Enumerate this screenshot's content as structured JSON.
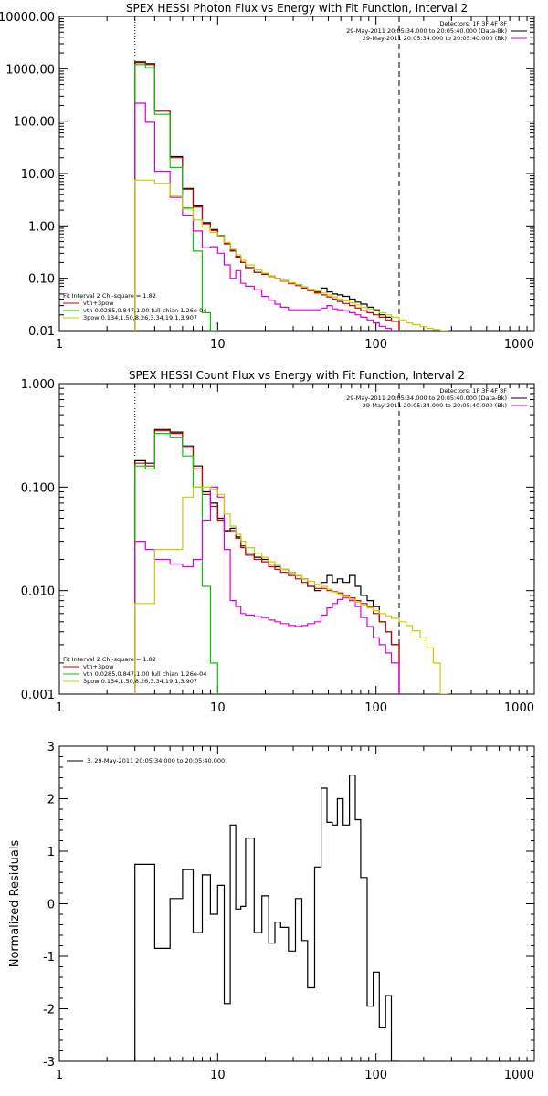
{
  "chart_data": [
    {
      "type": "line",
      "title": "SPEX HESSI Photon Flux vs Energy with Fit Function, Interval 2",
      "xlim": [
        1,
        1000
      ],
      "ylim": [
        0.01,
        10000
      ],
      "xscale": "log",
      "yscale": "log",
      "xticks": [
        "1",
        "10",
        "100",
        "1000"
      ],
      "yticks": [
        "0.01",
        "0.10",
        "1.00",
        "10.00",
        "100.00",
        "1000.00",
        "10000.00"
      ],
      "ytick_values": [
        0.01,
        0.1,
        1,
        10,
        100,
        1000,
        10000
      ],
      "vlines": [
        {
          "x": 3,
          "style": "dotted"
        },
        {
          "x": 140,
          "style": "dashed"
        }
      ],
      "legend_top_right": [
        "Detectors: 1F 3F 4F 8F",
        "29-May-2011 20:05:34.000 to 20:05:40.000 (Data-Bk)",
        "29-May-2011 20:05:34.000 to 20:05:40.000 (Bk)"
      ],
      "legend_top_colors": [
        "#000000",
        "#000000",
        "#dd00dd"
      ],
      "legend_bottom_left": {
        "header": "Fit Interval 2   Chi-square = 1.82",
        "entries": [
          {
            "label": "vth+3pow",
            "color": "#cc0000"
          },
          {
            "label": "vth 0.0285,0.847,1.00  full chian 1.26e-04",
            "color": "#00cc00"
          },
          {
            "label": "3pow 0.134,1.50,8.26,3.34,19.1,3.907",
            "color": "#cccc00"
          }
        ]
      },
      "series": [
        {
          "color": "#000000",
          "edges": [
            3,
            3.5,
            4,
            5,
            6,
            7,
            8,
            9,
            10,
            11,
            12,
            13,
            14,
            15,
            17,
            19,
            21,
            23,
            25,
            28,
            31,
            34,
            37,
            41,
            45,
            49,
            53,
            57,
            62,
            68,
            74,
            80,
            88,
            96,
            105,
            115,
            125,
            140
          ],
          "values": [
            1350,
            1250,
            160,
            21,
            5.2,
            2.4,
            1.15,
            0.85,
            0.65,
            0.46,
            0.34,
            0.26,
            0.2,
            0.16,
            0.13,
            0.12,
            0.11,
            0.1,
            0.09,
            0.08,
            0.075,
            0.068,
            0.06,
            0.055,
            0.065,
            0.055,
            0.05,
            0.048,
            0.045,
            0.04,
            0.035,
            0.032,
            0.028,
            0.025,
            0.02,
            0.018,
            0.015
          ]
        },
        {
          "color": "#cc0000",
          "edges": [
            3,
            3.5,
            4,
            5,
            6,
            7,
            8,
            9,
            10,
            11,
            12,
            13,
            14,
            15,
            17,
            19,
            21,
            23,
            25,
            28,
            31,
            34,
            37,
            41,
            45,
            49,
            53,
            57,
            62,
            68,
            74,
            80,
            88,
            96,
            105,
            115,
            125,
            140
          ],
          "values": [
            1300,
            1200,
            155,
            20,
            5,
            2.3,
            1.1,
            0.82,
            0.63,
            0.45,
            0.33,
            0.25,
            0.2,
            0.16,
            0.13,
            0.118,
            0.108,
            0.098,
            0.088,
            0.079,
            0.072,
            0.065,
            0.058,
            0.052,
            0.048,
            0.044,
            0.04,
            0.036,
            0.033,
            0.03,
            0.027,
            0.024,
            0.022,
            0.02,
            0.018,
            0.016,
            0.015
          ]
        },
        {
          "color": "#00cc00",
          "edges": [
            3,
            3.5,
            4,
            5,
            6,
            7,
            8,
            9,
            10
          ],
          "values": [
            1200,
            1050,
            135,
            13,
            2.2,
            0.33,
            0.022,
            0.007
          ]
        },
        {
          "color": "#dd00dd",
          "edges": [
            3,
            3.5,
            4,
            5,
            6,
            7,
            8,
            9,
            10,
            11,
            12,
            13,
            14,
            15,
            17,
            19,
            21,
            23,
            25,
            28,
            31,
            34,
            37,
            41,
            45,
            49,
            53,
            57,
            62,
            68,
            74,
            80,
            88,
            96,
            105,
            115,
            125,
            140
          ],
          "values": [
            220,
            95,
            11,
            3.5,
            1.6,
            0.8,
            0.38,
            0.4,
            0.3,
            0.18,
            0.1,
            0.14,
            0.08,
            0.07,
            0.06,
            0.045,
            0.038,
            0.032,
            0.028,
            0.025,
            0.025,
            0.025,
            0.025,
            0.025,
            0.027,
            0.03,
            0.026,
            0.025,
            0.024,
            0.022,
            0.02,
            0.018,
            0.016,
            0.014,
            0.012,
            0.011,
            0.01
          ]
        },
        {
          "color": "#cccc00",
          "edges": [
            3,
            4,
            5,
            6,
            7,
            8,
            9,
            10,
            11,
            12,
            13,
            14,
            15,
            17,
            19,
            21,
            23,
            25,
            28,
            31,
            34,
            37,
            41,
            45,
            49,
            53,
            57,
            62,
            68,
            74,
            80,
            88,
            96,
            105,
            115,
            125,
            140,
            155,
            170,
            190,
            210,
            230,
            255,
            280
          ],
          "values": [
            7.5,
            6.5,
            3.8,
            2.1,
            1.3,
            0.95,
            0.75,
            0.63,
            0.48,
            0.36,
            0.28,
            0.22,
            0.18,
            0.145,
            0.125,
            0.11,
            0.1,
            0.09,
            0.082,
            0.075,
            0.068,
            0.062,
            0.057,
            0.052,
            0.048,
            0.044,
            0.04,
            0.037,
            0.034,
            0.031,
            0.028,
            0.026,
            0.024,
            0.022,
            0.02,
            0.018,
            0.016,
            0.014,
            0.013,
            0.012,
            0.011,
            0.0105,
            0.01
          ]
        }
      ]
    },
    {
      "type": "line",
      "title": "SPEX HESSI Count Flux vs Energy with Fit Function, Interval 2",
      "xlim": [
        1,
        1000
      ],
      "ylim": [
        0.001,
        1
      ],
      "xscale": "log",
      "yscale": "log",
      "xticks": [
        "1",
        "10",
        "100",
        "1000"
      ],
      "yticks": [
        "0.001",
        "0.010",
        "0.100",
        "1.000"
      ],
      "ytick_values": [
        0.001,
        0.01,
        0.1,
        1
      ],
      "vlines": [
        {
          "x": 3,
          "style": "dotted"
        },
        {
          "x": 140,
          "style": "dashed"
        }
      ],
      "legend_top_right": [
        "Detectors: 1F 3F 4F 8F",
        "29-May-2011 20:05:34.000 to 20:05:40.000 (Data-Bk)",
        "29-May-2011 20:05:34.000 to 20:05:40.000 (Bk)"
      ],
      "legend_top_colors": [
        "#000000",
        "#000000",
        "#dd00dd"
      ],
      "legend_bottom_left": {
        "header": "Fit Interval 2   Chi-square = 1.82",
        "entries": [
          {
            "label": "vth+3pow",
            "color": "#cc0000"
          },
          {
            "label": "vth 0.0285,0.847,1.00  full chian 1.26e-04",
            "color": "#00cc00"
          },
          {
            "label": "3pow 0.134,1.50,8.26,3.34,19.1,3.907",
            "color": "#cccc00"
          }
        ]
      },
      "series": [
        {
          "color": "#000000",
          "edges": [
            3,
            3.5,
            4,
            5,
            6,
            7,
            8,
            9,
            10,
            11,
            12,
            13,
            14,
            15,
            17,
            19,
            21,
            23,
            25,
            28,
            31,
            34,
            37,
            41,
            45,
            49,
            53,
            57,
            62,
            68,
            74,
            80,
            88,
            96,
            105,
            115,
            125,
            140
          ],
          "values": [
            0.18,
            0.17,
            0.36,
            0.34,
            0.25,
            0.16,
            0.09,
            0.07,
            0.05,
            0.038,
            0.04,
            0.033,
            0.027,
            0.023,
            0.021,
            0.02,
            0.018,
            0.017,
            0.016,
            0.015,
            0.014,
            0.013,
            0.011,
            0.01,
            0.012,
            0.014,
            0.012,
            0.013,
            0.012,
            0.014,
            0.011,
            0.009,
            0.008,
            0.007,
            0.005,
            0.004,
            0.003
          ]
        },
        {
          "color": "#cc0000",
          "edges": [
            3,
            3.5,
            4,
            5,
            6,
            7,
            8,
            9,
            10,
            11,
            12,
            13,
            14,
            15,
            17,
            19,
            21,
            23,
            25,
            28,
            31,
            34,
            37,
            41,
            45,
            49,
            53,
            57,
            62,
            68,
            74,
            80,
            88,
            96,
            105,
            115,
            125,
            140
          ],
          "values": [
            0.17,
            0.16,
            0.35,
            0.33,
            0.24,
            0.15,
            0.085,
            0.065,
            0.048,
            0.037,
            0.038,
            0.032,
            0.026,
            0.022,
            0.02,
            0.019,
            0.017,
            0.016,
            0.015,
            0.014,
            0.013,
            0.012,
            0.011,
            0.0105,
            0.0105,
            0.01,
            0.0098,
            0.0095,
            0.009,
            0.0085,
            0.008,
            0.0075,
            0.007,
            0.006,
            0.005,
            0.004,
            0.003
          ]
        },
        {
          "color": "#00cc00",
          "edges": [
            3,
            3.5,
            4,
            5,
            6,
            7,
            8,
            9,
            10
          ],
          "values": [
            0.16,
            0.15,
            0.33,
            0.3,
            0.2,
            0.1,
            0.011,
            0.002
          ]
        },
        {
          "color": "#dd00dd",
          "edges": [
            3,
            3.5,
            4,
            5,
            6,
            7,
            8,
            9,
            10,
            11,
            12,
            13,
            14,
            15,
            17,
            19,
            21,
            23,
            25,
            28,
            31,
            34,
            37,
            41,
            45,
            49,
            53,
            57,
            62,
            68,
            74,
            80,
            88,
            96,
            105,
            115,
            125,
            140
          ],
          "values": [
            0.03,
            0.025,
            0.02,
            0.018,
            0.017,
            0.02,
            0.048,
            0.1,
            0.08,
            0.025,
            0.008,
            0.007,
            0.006,
            0.0058,
            0.0056,
            0.0055,
            0.0052,
            0.005,
            0.0048,
            0.0046,
            0.0045,
            0.0046,
            0.0048,
            0.005,
            0.0058,
            0.0068,
            0.0075,
            0.0082,
            0.0085,
            0.008,
            0.007,
            0.0055,
            0.0045,
            0.0035,
            0.003,
            0.0025,
            0.002
          ]
        },
        {
          "color": "#cccc00",
          "edges": [
            3,
            4,
            5,
            6,
            7,
            8,
            9,
            10,
            11,
            12,
            13,
            14,
            15,
            17,
            19,
            21,
            23,
            25,
            28,
            31,
            34,
            37,
            41,
            45,
            49,
            53,
            57,
            62,
            68,
            74,
            80,
            88,
            96,
            105,
            115,
            125,
            140,
            155,
            170,
            190,
            210,
            230,
            255,
            280
          ],
          "values": [
            0.0075,
            0.025,
            0.025,
            0.08,
            0.1,
            0.1,
            0.095,
            0.085,
            0.055,
            0.042,
            0.035,
            0.03,
            0.026,
            0.023,
            0.021,
            0.019,
            0.0175,
            0.016,
            0.015,
            0.014,
            0.013,
            0.0123,
            0.0115,
            0.011,
            0.0103,
            0.0097,
            0.0092,
            0.0087,
            0.0082,
            0.0077,
            0.0072,
            0.0068,
            0.0064,
            0.006,
            0.0057,
            0.0054,
            0.005,
            0.0046,
            0.0041,
            0.0035,
            0.0028,
            0.002,
            0.001
          ]
        }
      ]
    },
    {
      "type": "line",
      "title": "",
      "ylabel": "Normalized Residuals",
      "xlim": [
        1,
        1000
      ],
      "ylim": [
        -3,
        3
      ],
      "xscale": "log",
      "yscale": "linear",
      "xticks": [
        "1",
        "10",
        "100",
        "1000"
      ],
      "yticks": [
        "-3",
        "-2",
        "-1",
        "0",
        "1",
        "2",
        "3"
      ],
      "ytick_values": [
        -3,
        -2,
        -1,
        0,
        1,
        2,
        3
      ],
      "legend_text": "3. 29-May-2011 20:05:34.000 to 20:05:40.000",
      "series": [
        {
          "color": "#000000",
          "edges": [
            3,
            4,
            5,
            6,
            7,
            8,
            9,
            10,
            11,
            12,
            13,
            14,
            15,
            17,
            19,
            21,
            23,
            25,
            28,
            31,
            34,
            37,
            41,
            45,
            49,
            53,
            57,
            62,
            68,
            74,
            80,
            88,
            96,
            105,
            115,
            125,
            140
          ],
          "values": [
            0.75,
            -0.85,
            0.1,
            0.65,
            -0.55,
            0.55,
            -0.2,
            0.35,
            -1.9,
            1.5,
            -0.1,
            -0.05,
            1.25,
            -0.55,
            0.15,
            -0.75,
            -0.35,
            -0.45,
            -0.9,
            0.1,
            -0.7,
            -1.6,
            0.7,
            2.2,
            1.55,
            1.5,
            2.0,
            1.5,
            2.45,
            1.6,
            0.5,
            -1.95,
            -1.3,
            -2.35,
            -1.75,
            -3.0
          ]
        }
      ]
    }
  ]
}
